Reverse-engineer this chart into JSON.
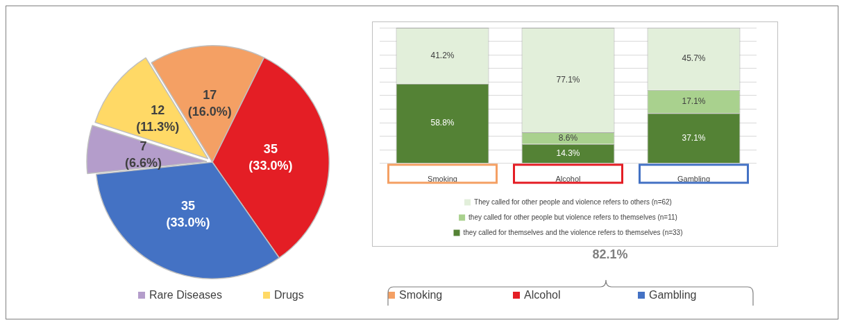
{
  "chart_data": [
    {
      "type": "pie",
      "categories": [
        "Rare Diseases",
        "Drugs",
        "Smoking",
        "Alcohol",
        "Gambling"
      ],
      "values": [
        7,
        12,
        17,
        35,
        35
      ],
      "colors": [
        "#b49dcb",
        "#ffd966",
        "#f4a064",
        "#e41e25",
        "#4472c4"
      ],
      "value_labels": [
        "7 (6.6%)",
        "12 (11.3%)",
        "17 (16.0%)",
        "35 (33.0%)",
        "35 (33.0%)"
      ],
      "legend": "bottom",
      "annotations": [
        "82.1%"
      ]
    },
    {
      "type": "bar",
      "stacked": true,
      "tick_labels": "x",
      "categories": [
        "Smoking",
        "Alcohol",
        "Gambling"
      ],
      "grid": "y",
      "legend": "bottom",
      "series": [
        {
          "name": "they called for themselves and the violence refers to themselves (n=33)",
          "color": "#548235",
          "values": [
            58.8,
            14.3,
            37.1
          ],
          "value_labels": [
            "58.8%",
            "14.3%",
            "37.1%"
          ]
        },
        {
          "name": "they called for other people but violence refers to themselves (n=11)",
          "color": "#a9d18e",
          "values": [
            null,
            8.6,
            17.1
          ],
          "value_labels": [
            null,
            "8.6%",
            "17.1%"
          ]
        },
        {
          "name": "They called for other people and violence refers to others (n=62)",
          "color": "#e2efda",
          "values": [
            41.2,
            77.1,
            45.7
          ],
          "value_labels": [
            "41.2%",
            "77.1%",
            "45.7%"
          ]
        }
      ]
    }
  ]
}
